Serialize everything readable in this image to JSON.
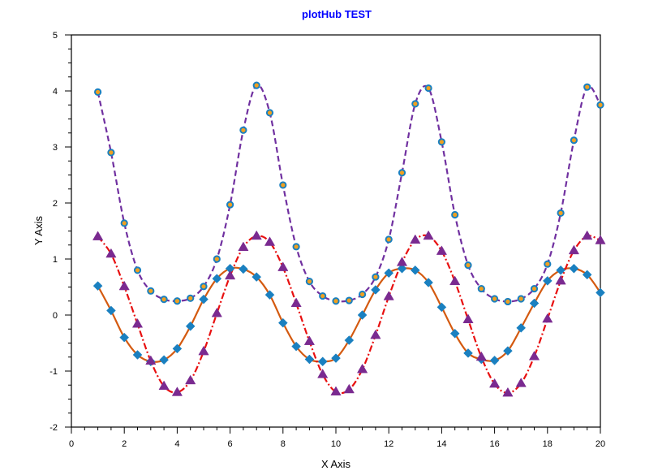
{
  "chart_data": {
    "type": "line",
    "title": "plotHub TEST",
    "xlabel": "X Axis",
    "ylabel": "Y Axis",
    "xlim": [
      0,
      20
    ],
    "ylim": [
      -2,
      5
    ],
    "xticks": [
      "0",
      "2",
      "4",
      "6",
      "8",
      "10",
      "12",
      "14",
      "16",
      "18",
      "20"
    ],
    "yticks": [
      "-2",
      "-1",
      "0",
      "1",
      "2",
      "3",
      "4",
      "5"
    ],
    "grid": false,
    "legend": "none",
    "x": [
      1,
      1.5,
      2,
      2.5,
      3,
      3.5,
      4,
      4.5,
      5,
      5.5,
      6,
      6.5,
      7,
      7.5,
      8,
      8.5,
      9,
      9.5,
      10,
      10.5,
      11,
      11.5,
      12,
      12.5,
      13,
      13.5,
      14,
      14.5,
      15,
      15.5,
      16,
      16.5,
      17,
      17.5,
      18,
      18.5,
      19,
      19.5,
      20
    ],
    "series": [
      {
        "line_color": "#7030a0",
        "line_style": "dashed",
        "marker": "circle",
        "marker_fill": "#f0a020",
        "marker_stroke": "#1a80c0",
        "values": [
          3.98,
          2.9,
          1.64,
          0.8,
          0.43,
          0.28,
          0.25,
          0.3,
          0.51,
          1.0,
          1.97,
          3.3,
          4.1,
          3.61,
          2.32,
          1.22,
          0.6,
          0.34,
          0.25,
          0.26,
          0.37,
          0.68,
          1.35,
          2.54,
          3.77,
          4.05,
          3.09,
          1.79,
          0.89,
          0.47,
          0.29,
          0.24,
          0.29,
          0.47,
          0.91,
          1.82,
          3.12,
          4.07,
          3.75
        ]
      },
      {
        "line_color": "#d45a10",
        "line_style": "solid",
        "marker": "diamond",
        "marker_fill": "#1a80c0",
        "marker_stroke": "#1a80c0",
        "values": [
          0.52,
          0.08,
          -0.4,
          -0.71,
          -0.83,
          -0.8,
          -0.6,
          -0.2,
          0.28,
          0.65,
          0.83,
          0.82,
          0.68,
          0.36,
          -0.14,
          -0.56,
          -0.79,
          -0.83,
          -0.77,
          -0.45,
          0.0,
          0.45,
          0.75,
          0.83,
          0.8,
          0.58,
          0.14,
          -0.33,
          -0.68,
          -0.79,
          -0.81,
          -0.64,
          -0.23,
          0.21,
          0.61,
          0.8,
          0.83,
          0.72,
          0.4
        ]
      },
      {
        "line_color": "#e81010",
        "line_style": "dashdot",
        "marker": "triangle",
        "marker_fill": "#7a2a90",
        "marker_stroke": "#7a2a90",
        "values": [
          1.4,
          1.09,
          0.51,
          -0.16,
          -0.82,
          -1.27,
          -1.38,
          -1.17,
          -0.65,
          0.03,
          0.7,
          1.21,
          1.41,
          1.3,
          0.85,
          0.21,
          -0.47,
          -1.06,
          -1.37,
          -1.33,
          -0.97,
          -0.36,
          0.33,
          0.94,
          1.34,
          1.41,
          1.14,
          0.6,
          -0.08,
          -0.75,
          -1.23,
          -1.39,
          -1.22,
          -0.74,
          -0.07,
          0.61,
          1.15,
          1.41,
          1.33
        ]
      }
    ]
  }
}
